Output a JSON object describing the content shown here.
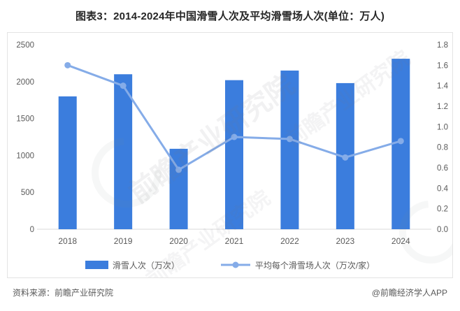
{
  "chart_data": {
    "type": "bar",
    "subtype": "bar-line-combo",
    "title": "图表3：2014-2024年中国滑雪人次及平均滑雪场人次(单位：万人)",
    "categories": [
      "2018",
      "2019",
      "2020",
      "2021",
      "2022",
      "2023",
      "2024"
    ],
    "series": [
      {
        "name": "滑雪人次（万次）",
        "type": "bar",
        "axis": "left",
        "values": [
          1800,
          2100,
          1090,
          2020,
          2150,
          1980,
          2310
        ]
      },
      {
        "name": "平均每个滑雪场人次（万次/家）",
        "type": "line",
        "axis": "right",
        "values": [
          1.6,
          1.4,
          0.58,
          0.9,
          0.88,
          0.7,
          0.86
        ]
      }
    ],
    "left_axis": {
      "min": 0,
      "max": 2500,
      "step": 500,
      "ticks": [
        "0",
        "500",
        "1000",
        "1500",
        "2000",
        "2500"
      ]
    },
    "right_axis": {
      "min": 0,
      "max": 1.8,
      "step": 0.2,
      "ticks": [
        "0.0",
        "0.2",
        "0.4",
        "0.6",
        "0.8",
        "1.0",
        "1.2",
        "1.4",
        "1.6",
        "1.8"
      ]
    },
    "grid": "off",
    "legend_position": "bottom"
  },
  "colors": {
    "bar": "#3b7ddd",
    "line": "#85ace8",
    "axis_text": "#595959",
    "baseline": "#d9d9d9",
    "title_text": "#262626"
  },
  "watermark": {
    "text": "前瞻产业研究院"
  },
  "footer": {
    "source": "资料来源：前瞻产业研究院",
    "credit": "@前瞻经济学人APP"
  }
}
